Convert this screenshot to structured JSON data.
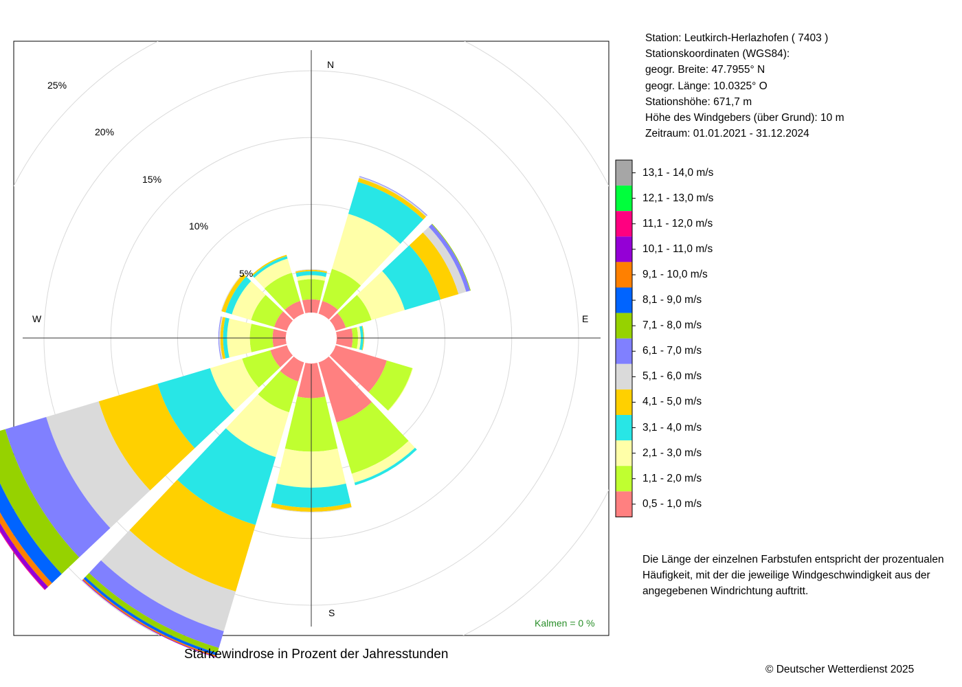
{
  "station": {
    "line1": "Station:  Leutkirch-Herlazhofen  ( 7403 )",
    "line2": "Stationskoordinaten (WGS84):",
    "line3": "geogr. Breite: 47.7955° N",
    "line4": "geogr. Länge: 10.0325° O",
    "line5": "Stationshöhe: 671,7 m",
    "line6": "Höhe des Windgebers (über Grund): 10 m",
    "line7": "Zeitraum: 01.01.2021 - 31.12.2024"
  },
  "directions": {
    "N": "N",
    "E": "E",
    "S": "S",
    "W": "W"
  },
  "radial_labels": [
    "5%",
    "10%",
    "15%",
    "20%",
    "25%"
  ],
  "calm_text": "Kalmen  =  0 %",
  "caption": "Stärkewindrose in Prozent der Jahresstunden",
  "note": "Die Länge der einzelnen Farbstufen entspricht der prozentualen Häufigkeit, mit der die jeweilige Windgeschwindigkeit aus der angegebenen Windrichtung auftritt.",
  "copyright": "© Deutscher Wetterdienst  2025",
  "legend": [
    {
      "label": "13,1 - 14,0 m/s",
      "color": "#a6a6a6"
    },
    {
      "label": "12,1 - 13,0 m/s",
      "color": "#00ff3c"
    },
    {
      "label": "11,1 - 12,0 m/s",
      "color": "#ff0080"
    },
    {
      "label": "10,1 - 11,0 m/s",
      "color": "#9400d6"
    },
    {
      "label": "9,1 - 10,0 m/s",
      "color": "#ff8000"
    },
    {
      "label": "8,1 - 9,0 m/s",
      "color": "#0064ff"
    },
    {
      "label": "7,1 - 8,0 m/s",
      "color": "#96d200"
    },
    {
      "label": "6,1 - 7,0 m/s",
      "color": "#8080ff"
    },
    {
      "label": "5,1 - 6,0 m/s",
      "color": "#dadada"
    },
    {
      "label": "4,1 - 5,0 m/s",
      "color": "#ffd000"
    },
    {
      "label": "3,1 - 4,0 m/s",
      "color": "#28e6e6"
    },
    {
      "label": "2,1 - 3,0 m/s",
      "color": "#ffffa8"
    },
    {
      "label": "1,1 - 2,0 m/s",
      "color": "#c0ff30"
    },
    {
      "label": "0,5 - 1,0 m/s",
      "color": "#ff8080"
    }
  ],
  "chart_data": {
    "type": "windrose",
    "unit": "%",
    "sector_width_deg": 30,
    "radial_ticks": [
      5,
      10,
      15,
      20,
      25
    ],
    "inner_hole_percent": 1.9,
    "calm_percent": 0,
    "speed_classes": [
      "0,5 - 1,0 m/s",
      "1,1 - 2,0 m/s",
      "2,1 - 3,0 m/s",
      "3,1 - 4,0 m/s",
      "4,1 - 5,0 m/s",
      "5,1 - 6,0 m/s",
      "6,1 - 7,0 m/s",
      "7,1 - 8,0 m/s",
      "8,1 - 9,0 m/s",
      "9,1 - 10,0 m/s",
      "10,1 - 11,0 m/s",
      "11,1 - 12,0 m/s",
      "12,1 - 13,0 m/s",
      "13,1 - 14,0 m/s"
    ],
    "sectors": [
      {
        "direction_deg": 0,
        "values": [
          1.0,
          1.5,
          0.3,
          0.3,
          0.1,
          0.05,
          0,
          0,
          0,
          0,
          0,
          0,
          0,
          0
        ]
      },
      {
        "direction_deg": 30,
        "values": [
          1.0,
          2.5,
          4.3,
          2.5,
          0.3,
          0.1,
          0.05,
          0,
          0,
          0,
          0,
          0,
          0,
          0
        ]
      },
      {
        "direction_deg": 60,
        "values": [
          0.8,
          2.0,
          2.6,
          2.8,
          1.4,
          0.6,
          0.3,
          0.05,
          0,
          0,
          0,
          0,
          0,
          0
        ]
      },
      {
        "direction_deg": 90,
        "values": [
          1.2,
          0.4,
          0.2,
          0.2,
          0.05,
          0,
          0,
          0,
          0,
          0,
          0,
          0,
          0,
          0
        ]
      },
      {
        "direction_deg": 120,
        "values": [
          4.0,
          2.0,
          0.05,
          0,
          0,
          0,
          0,
          0,
          0,
          0,
          0,
          0,
          0,
          0
        ]
      },
      {
        "direction_deg": 150,
        "values": [
          4.7,
          4.0,
          0.7,
          0.2,
          0,
          0,
          0,
          0,
          0,
          0,
          0,
          0,
          0,
          0
        ]
      },
      {
        "direction_deg": 180,
        "values": [
          2.6,
          4.0,
          2.7,
          1.5,
          0.3,
          0.05,
          0,
          0,
          0,
          0,
          0,
          0,
          0,
          0
        ]
      },
      {
        "direction_deg": 210,
        "values": [
          1.5,
          2.4,
          3.5,
          5.3,
          5.2,
          3.1,
          1.3,
          0.4,
          0.2,
          0.1,
          0.05,
          0,
          0,
          0
        ]
      },
      {
        "direction_deg": 240,
        "values": [
          1.3,
          2.2,
          2.5,
          4.1,
          4.6,
          4.1,
          3.2,
          1.8,
          1.0,
          0.4,
          0.3,
          0.05,
          0,
          0
        ]
      },
      {
        "direction_deg": 270,
        "values": [
          1.0,
          1.7,
          1.7,
          0.3,
          0.2,
          0.1,
          0.05,
          0,
          0,
          0,
          0,
          0,
          0,
          0
        ]
      },
      {
        "direction_deg": 300,
        "values": [
          1.0,
          1.8,
          1.5,
          0.5,
          0.3,
          0.05,
          0,
          0,
          0,
          0,
          0,
          0,
          0,
          0
        ]
      },
      {
        "direction_deg": 330,
        "values": [
          1.0,
          2.2,
          1.1,
          0.2,
          0.1,
          0,
          0,
          0,
          0,
          0,
          0,
          0,
          0,
          0
        ]
      }
    ]
  }
}
